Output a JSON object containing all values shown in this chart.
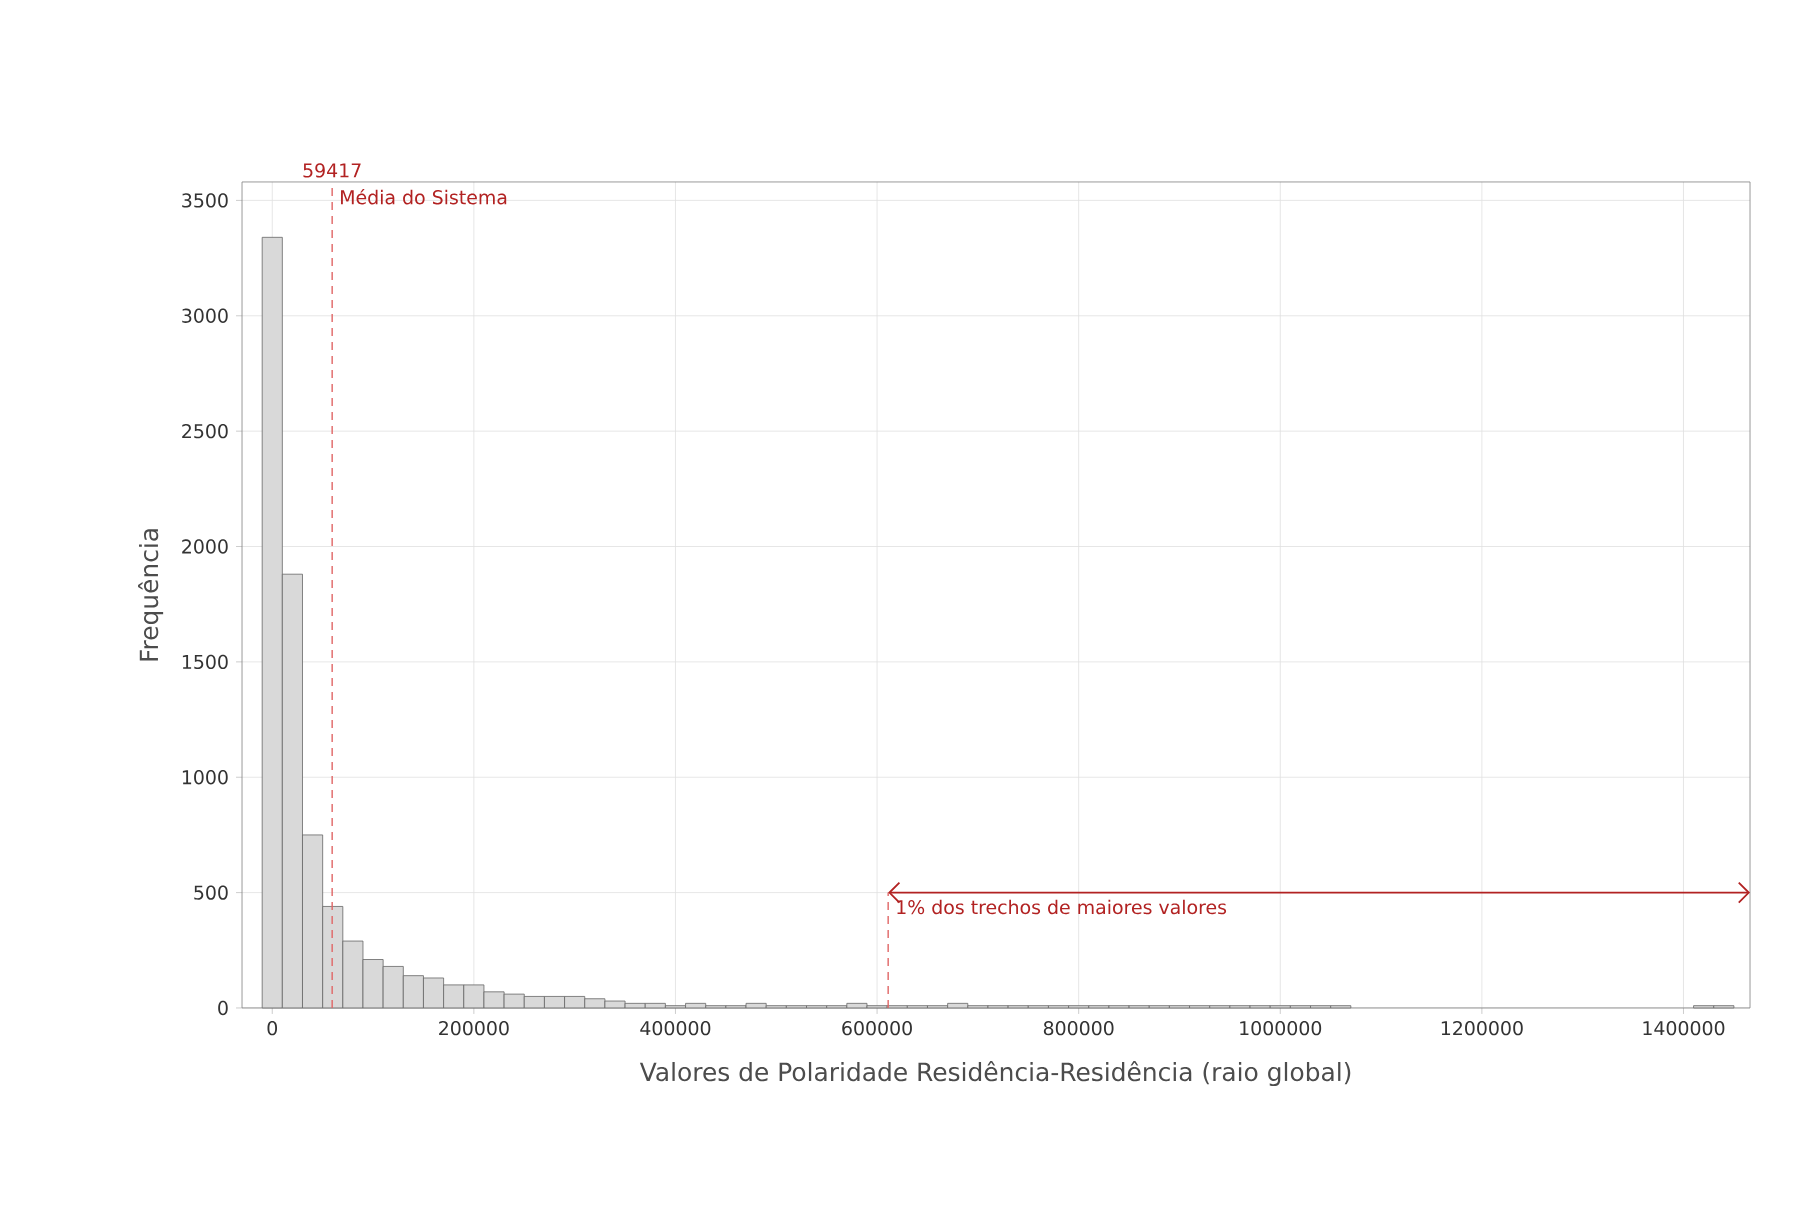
{
  "chart_data": {
    "type": "histogram",
    "xlabel": "Valores de Polaridade Residência-Residência (raio global)",
    "ylabel": "Frequência",
    "bins": [
      -10000,
      10000,
      30000,
      50000,
      70000,
      90000,
      110000,
      130000,
      150000,
      170000,
      190000,
      210000,
      230000,
      250000,
      270000,
      290000,
      310000,
      330000,
      350000,
      370000,
      390000,
      410000,
      430000,
      450000,
      470000,
      490000,
      510000,
      530000,
      550000,
      570000,
      590000,
      610000,
      630000,
      650000,
      670000,
      690000,
      710000,
      730000,
      750000,
      770000,
      790000,
      810000,
      830000,
      850000,
      870000,
      890000,
      910000,
      930000,
      950000,
      970000,
      990000,
      1010000,
      1030000,
      1050000,
      1070000,
      1090000,
      1110000,
      1130000,
      1150000,
      1170000,
      1190000,
      1210000,
      1230000,
      1250000,
      1270000,
      1290000,
      1310000,
      1330000,
      1350000,
      1370000,
      1390000,
      1410000,
      1430000,
      1450000
    ],
    "values": [
      3340,
      1880,
      750,
      440,
      290,
      210,
      180,
      140,
      130,
      100,
      100,
      70,
      60,
      50,
      50,
      50,
      40,
      30,
      20,
      20,
      10,
      20,
      10,
      10,
      20,
      10,
      10,
      10,
      10,
      20,
      10,
      10,
      10,
      10,
      20,
      10,
      10,
      10,
      10,
      10,
      10,
      10,
      10,
      10,
      10,
      10,
      10,
      10,
      10,
      10,
      10,
      10,
      10,
      10,
      0,
      0,
      0,
      0,
      0,
      0,
      0,
      0,
      0,
      0,
      0,
      0,
      0,
      0,
      0,
      0,
      0,
      10,
      10
    ],
    "color": "#d9d9d9",
    "xlim": [
      -30000,
      1466000
    ],
    "ylim": [
      0,
      3580
    ],
    "xticks": [
      0,
      200000,
      400000,
      600000,
      800000,
      1000000,
      1200000,
      1400000
    ],
    "yticks": [
      0,
      500,
      1000,
      1500,
      2000,
      2500,
      3000,
      3500
    ],
    "grid": true,
    "ref_lines": [
      {
        "axis": "x",
        "value": 59417,
        "label": "Média do Sistema",
        "color": "#e06666",
        "line_style": "dashed"
      },
      {
        "axis": "x",
        "value": 611000,
        "color": "#e06666",
        "line_style": "dashed"
      }
    ],
    "annotations": [
      {
        "text": "59417",
        "x": 59417,
        "y": 3580
      },
      {
        "text": "1% dos trechos de maiores valores",
        "x": 611000,
        "y": 500
      }
    ]
  }
}
